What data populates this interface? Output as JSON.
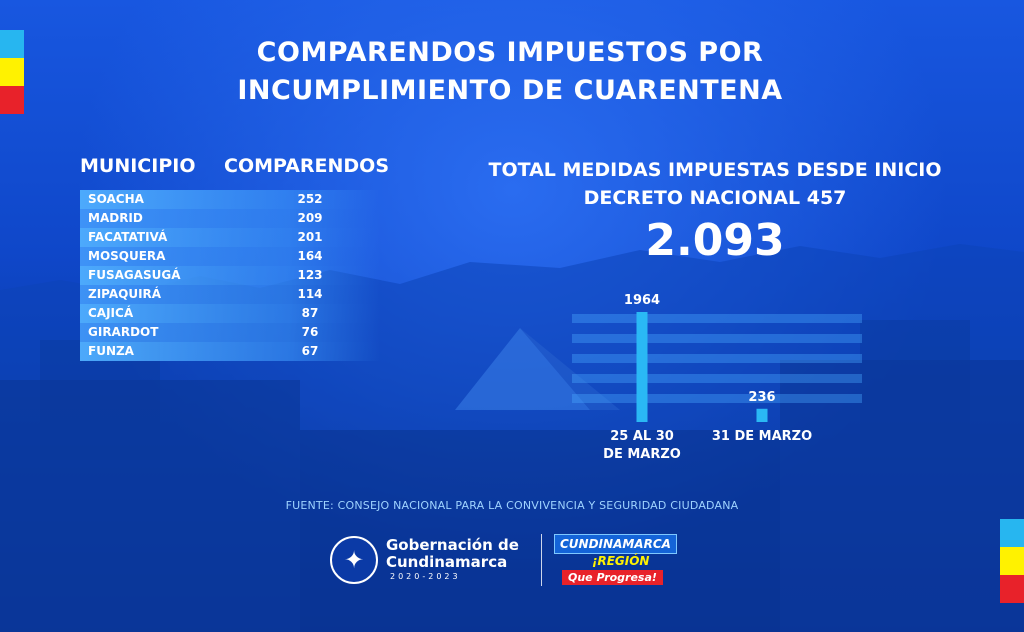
{
  "title": {
    "line1": "COMPARENDOS IMPUESTOS POR",
    "line2": "INCUMPLIMIENTO DE CUARENTENA"
  },
  "table": {
    "headers": [
      "MUNICIPIO",
      "COMPARENDOS"
    ],
    "rows": [
      {
        "municipio": "SOACHA",
        "comparendos": "252"
      },
      {
        "municipio": "MADRID",
        "comparendos": "209"
      },
      {
        "municipio": "FACATATIVÁ",
        "comparendos": "201"
      },
      {
        "municipio": "MOSQUERA",
        "comparendos": "164"
      },
      {
        "municipio": "FUSAGASUGÁ",
        "comparendos": "123"
      },
      {
        "municipio": "ZIPAQUIRÁ",
        "comparendos": "114"
      },
      {
        "municipio": "CAJICÁ",
        "comparendos": "87"
      },
      {
        "municipio": "GIRARDOT",
        "comparendos": "76"
      },
      {
        "municipio": "FUNZA",
        "comparendos": "67"
      }
    ]
  },
  "total": {
    "label_line1": "TOTAL MEDIDAS IMPUESTAS DESDE INICIO",
    "label_line2": "DECRETO NACIONAL 457",
    "value": "2.093"
  },
  "chart_data": [
    {
      "type": "table",
      "columns": [
        "MUNICIPIO",
        "COMPARENDOS"
      ],
      "rows": [
        [
          "SOACHA",
          252
        ],
        [
          "MADRID",
          209
        ],
        [
          "FACATATIVÁ",
          201
        ],
        [
          "MOSQUERA",
          164
        ],
        [
          "FUSAGASUGÁ",
          123
        ],
        [
          "ZIPAQUIRÁ",
          114
        ],
        [
          "CAJICÁ",
          87
        ],
        [
          "GIRARDOT",
          76
        ],
        [
          "FUNZA",
          67
        ]
      ]
    },
    {
      "type": "bar",
      "categories": [
        "25 AL 30 DE MARZO",
        "31 DE MARZO"
      ],
      "category_lines": [
        [
          "25 AL 30",
          "DE MARZO"
        ],
        [
          "31 DE MARZO"
        ]
      ],
      "values": [
        1964,
        236
      ],
      "value_labels": [
        "1964",
        "236"
      ],
      "ylim": [
        0,
        1964
      ],
      "grid": true,
      "bar_color": "#2ab8f5"
    }
  ],
  "source": "FUENTE: CONSEJO NACIONAL PARA LA CONVIVENCIA Y SEGURIDAD CIUDADANA",
  "footer": {
    "gob_line1": "Gobernación de",
    "gob_line2": "Cundinamarca",
    "gob_years": "2020-2023",
    "region_name": "CUNDINAMARCA",
    "region_sub": "¡REGIÓN",
    "region_slogan": "Que Progresa!",
    "seal_icon": "eagle-seal-icon"
  },
  "colors": {
    "flag_blue": "#27b6f0",
    "flag_yellow": "#fff200",
    "flag_red": "#e8222a",
    "background": "#1450d6"
  }
}
